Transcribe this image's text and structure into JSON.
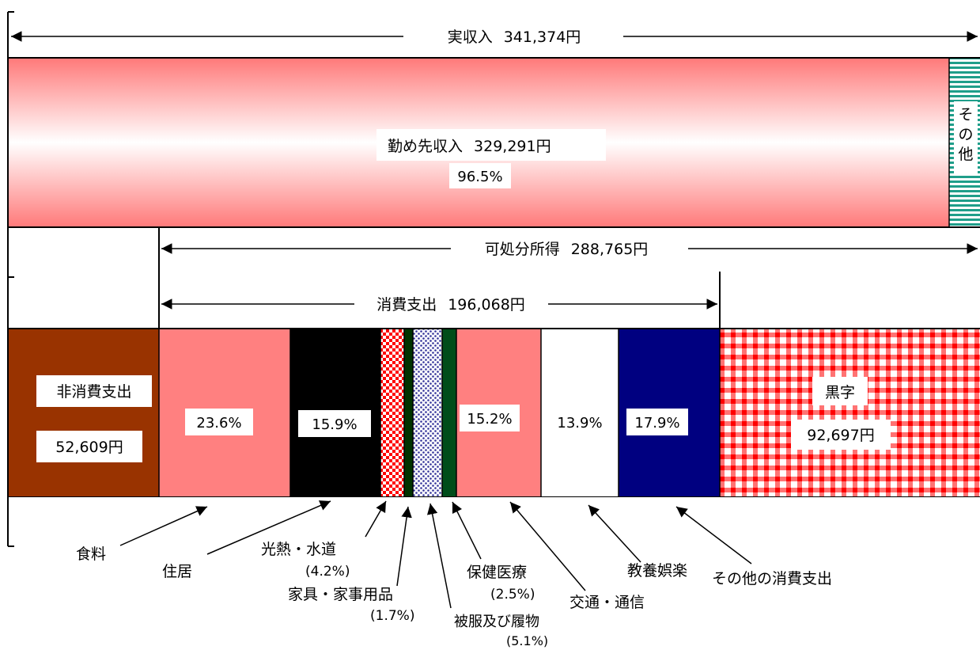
{
  "chart_data": {
    "type": "bar",
    "orientation": "horizontal",
    "unit": "円",
    "income": {
      "label": "実収入",
      "value_text": "341,374円",
      "segments": [
        {
          "key": "wage",
          "label": "勤め先収入",
          "value_text": "329,291円",
          "pct_text": "96.5%",
          "color": "#ff7f7f"
        },
        {
          "key": "other",
          "label": "その他",
          "color": "#1f9e8a"
        }
      ]
    },
    "disposable": {
      "label": "可処分所得",
      "value_text": "288,765円"
    },
    "consumption": {
      "label": "消費支出",
      "value_text": "196,068円"
    },
    "spending": [
      {
        "key": "nonconsumption",
        "label": "非消費支出",
        "value_text": "52,609円",
        "color": "#993300"
      },
      {
        "key": "food",
        "label": "食料",
        "pct_text": "23.6%",
        "pct": 23.6,
        "color": "#ff8080"
      },
      {
        "key": "housing",
        "label": "住居",
        "pct_text": "15.9%",
        "pct": 15.9,
        "color": "#000000"
      },
      {
        "key": "utilities",
        "label": "光熱・水道",
        "pct_text": "(4.2%)",
        "pct": 4.2,
        "color": "#ff0000"
      },
      {
        "key": "furniture",
        "label": "家具・家事用品",
        "pct_text": "(1.7%)",
        "pct": 1.7,
        "color": "#003300"
      },
      {
        "key": "clothing",
        "label": "被服及び履物",
        "pct_text": "(5.1%)",
        "pct": 5.1,
        "color": "#333399"
      },
      {
        "key": "medical",
        "label": "保健医療",
        "pct_text": "(2.5%)",
        "pct": 2.5,
        "color": "#004d1a"
      },
      {
        "key": "transport",
        "label": "交通・通信",
        "pct_text": "15.2%",
        "pct": 15.2,
        "color": "#ff8080"
      },
      {
        "key": "education",
        "label": "教養娯楽",
        "pct_text": "13.9%",
        "pct": 13.9,
        "color": "#ffffff"
      },
      {
        "key": "others",
        "label": "その他の消費支出",
        "pct_text": "17.9%",
        "pct": 17.9,
        "color": "#000080"
      },
      {
        "key": "surplus",
        "label": "黒字",
        "value_text": "92,697円",
        "color": "#ff0000"
      }
    ]
  }
}
